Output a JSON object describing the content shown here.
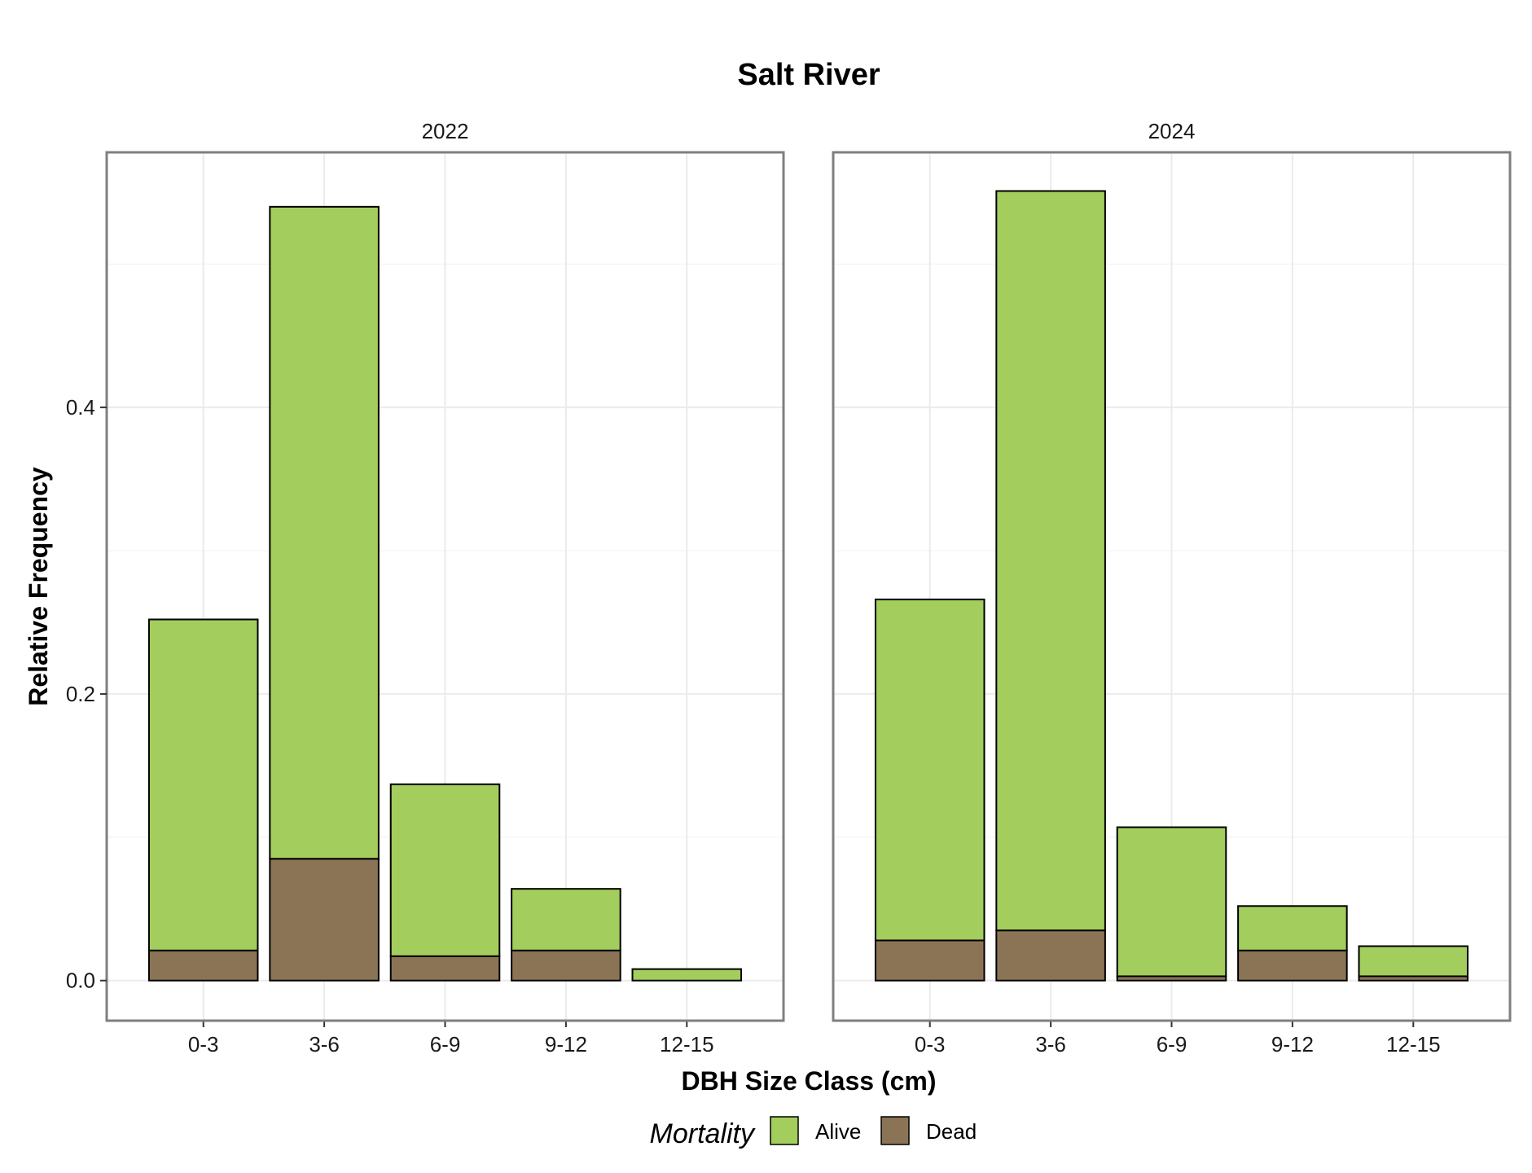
{
  "chart_data": {
    "type": "bar",
    "stacked": true,
    "title": "Salt River",
    "xlabel": "DBH Size Class (cm)",
    "ylabel": "Relative Frequency",
    "categories": [
      "0-3",
      "3-6",
      "6-9",
      "9-12",
      "12-15"
    ],
    "yticks": [
      "0.0",
      "0.2",
      "0.4"
    ],
    "ylim": [
      -0.028,
      0.578
    ],
    "grid": true,
    "legend": {
      "title": "Mortality",
      "position": "bottom",
      "entries": [
        {
          "name": "Alive",
          "color": "#a3cd5c"
        },
        {
          "name": "Dead",
          "color": "#8b7455"
        }
      ]
    },
    "panels": [
      {
        "label": "2022",
        "series": [
          {
            "name": "Dead",
            "values": [
              0.021,
              0.085,
              0.017,
              0.021,
              0.0
            ]
          },
          {
            "name": "Alive",
            "values": [
              0.231,
              0.455,
              0.12,
              0.043,
              0.008
            ]
          }
        ]
      },
      {
        "label": "2024",
        "series": [
          {
            "name": "Dead",
            "values": [
              0.028,
              0.035,
              0.003,
              0.021,
              0.003
            ]
          },
          {
            "name": "Alive",
            "values": [
              0.238,
              0.516,
              0.104,
              0.031,
              0.021
            ]
          }
        ]
      }
    ]
  }
}
